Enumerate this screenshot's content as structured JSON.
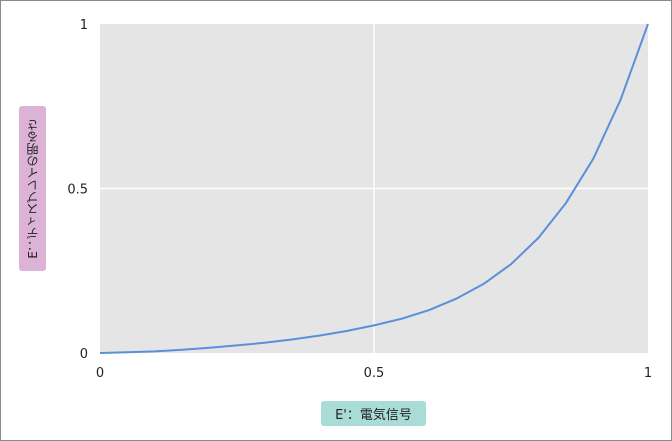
{
  "chart_data": {
    "type": "line",
    "title": "",
    "xlabel": "E'：電気信号",
    "ylabel": "E：ディスプレイの明るさ",
    "xlim": [
      0,
      1
    ],
    "ylim": [
      0,
      1
    ],
    "x_ticks": [
      0,
      0.5,
      1
    ],
    "y_ticks": [
      0,
      0.5,
      1
    ],
    "x_tick_labels": [
      "0",
      "0.5",
      "1"
    ],
    "y_tick_labels": [
      "0",
      "0.5",
      "1"
    ],
    "grid": true,
    "legend": "none",
    "series": [
      {
        "color": "#5b8fd9",
        "x": [
          0,
          0.05,
          0.1,
          0.15,
          0.2,
          0.25,
          0.3,
          0.35,
          0.4,
          0.45,
          0.5,
          0.55,
          0.6,
          0.65,
          0.7,
          0.75,
          0.8,
          0.85,
          0.9,
          0.95,
          1.0
        ],
        "y": [
          0,
          0.002,
          0.005,
          0.01,
          0.016,
          0.023,
          0.031,
          0.041,
          0.053,
          0.067,
          0.084,
          0.104,
          0.13,
          0.165,
          0.21,
          0.27,
          0.35,
          0.455,
          0.59,
          0.77,
          1.0
        ]
      }
    ]
  }
}
